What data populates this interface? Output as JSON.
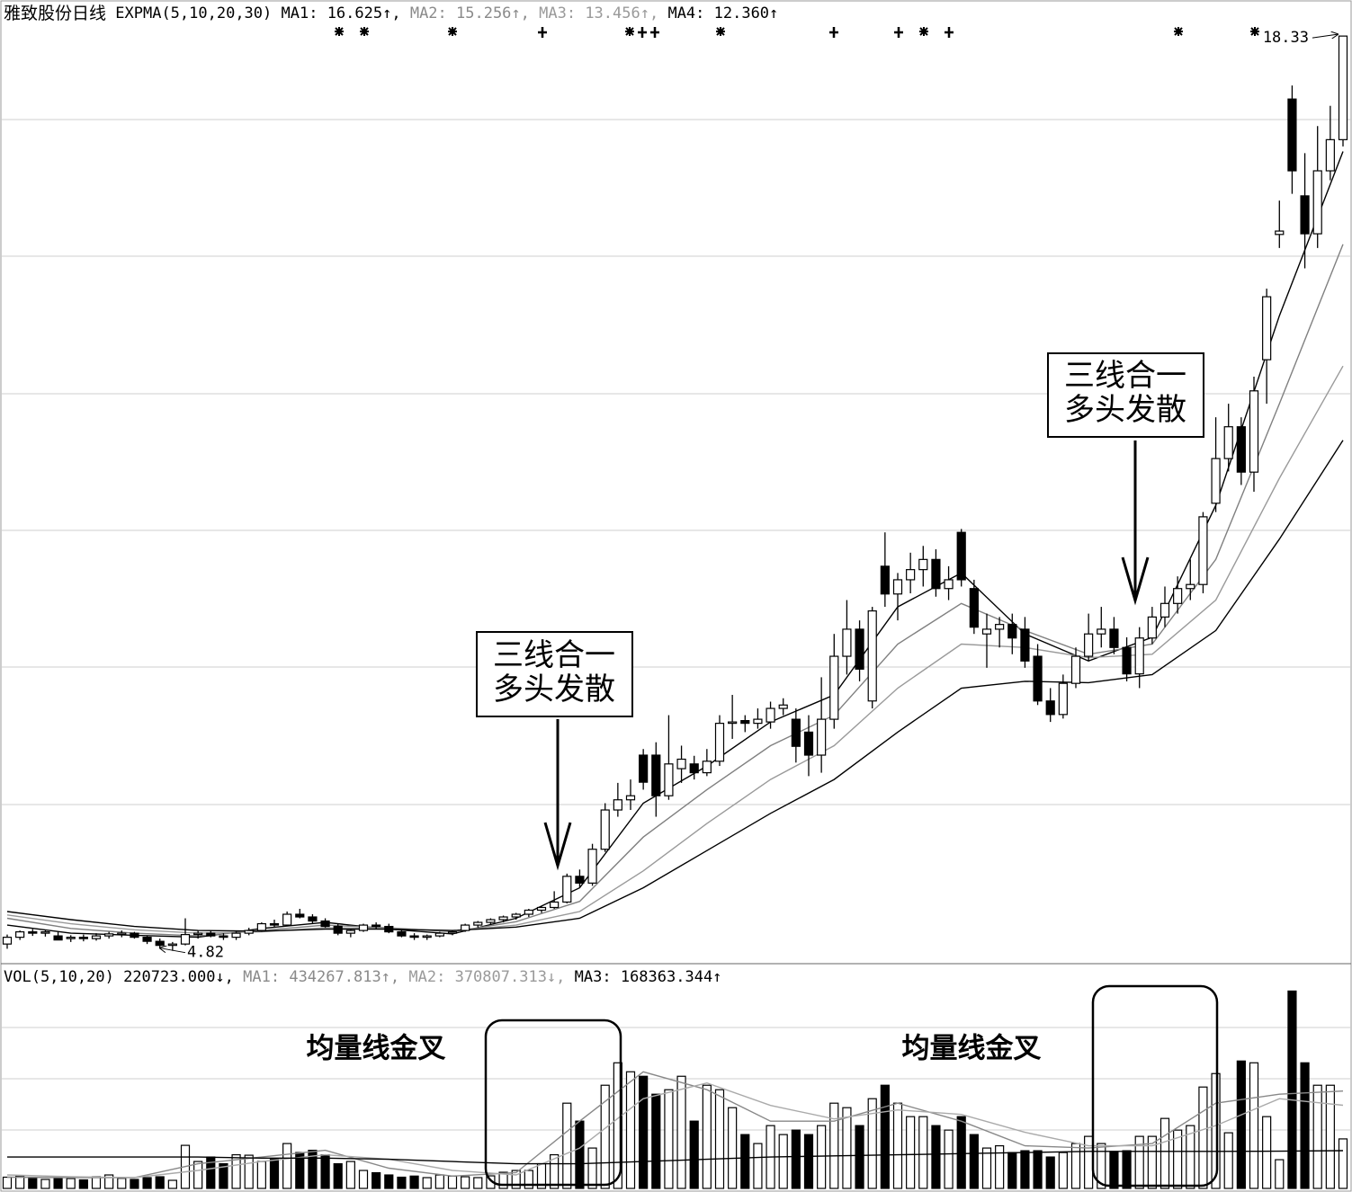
{
  "chart_data": [
    {
      "type": "candlestick",
      "title": "雅致股份日线",
      "indicator": "EXPMA(5,10,20,30)",
      "ylim": [
        4.63,
        18.73
      ],
      "candles": [
        [
          4.92,
          5.06,
          4.85,
          5.02
        ],
        [
          5.02,
          5.12,
          4.98,
          5.1
        ],
        [
          5.1,
          5.14,
          5.04,
          5.08
        ],
        [
          5.08,
          5.12,
          5.03,
          5.1
        ],
        [
          5.04,
          5.1,
          4.98,
          4.98
        ],
        [
          5.0,
          5.05,
          4.95,
          5.02
        ],
        [
          5.02,
          5.06,
          4.96,
          5.0
        ],
        [
          5.0,
          5.08,
          4.97,
          5.04
        ],
        [
          5.04,
          5.1,
          5.0,
          5.07
        ],
        [
          5.07,
          5.12,
          5.02,
          5.08
        ],
        [
          5.08,
          5.1,
          5.0,
          5.02
        ],
        [
          5.02,
          5.04,
          4.92,
          4.96
        ],
        [
          4.96,
          5.0,
          4.86,
          4.9
        ],
        [
          4.9,
          4.95,
          4.82,
          4.92
        ],
        [
          4.92,
          5.3,
          4.9,
          5.06
        ],
        [
          5.06,
          5.12,
          5.0,
          5.08
        ],
        [
          5.08,
          5.12,
          5.02,
          5.04
        ],
        [
          5.04,
          5.08,
          4.98,
          5.02
        ],
        [
          5.02,
          5.1,
          4.98,
          5.08
        ],
        [
          5.08,
          5.16,
          5.05,
          5.12
        ],
        [
          5.12,
          5.24,
          5.1,
          5.22
        ],
        [
          5.22,
          5.28,
          5.16,
          5.2
        ],
        [
          5.2,
          5.4,
          5.18,
          5.36
        ],
        [
          5.36,
          5.44,
          5.3,
          5.32
        ],
        [
          5.32,
          5.36,
          5.22,
          5.26
        ],
        [
          5.26,
          5.3,
          5.16,
          5.18
        ],
        [
          5.18,
          5.22,
          5.05,
          5.08
        ],
        [
          5.08,
          5.14,
          5.02,
          5.12
        ],
        [
          5.12,
          5.22,
          5.1,
          5.2
        ],
        [
          5.2,
          5.24,
          5.14,
          5.18
        ],
        [
          5.18,
          5.22,
          5.08,
          5.1
        ],
        [
          5.1,
          5.14,
          5.02,
          5.04
        ],
        [
          5.04,
          5.08,
          4.98,
          5.02
        ],
        [
          5.02,
          5.06,
          4.98,
          5.04
        ],
        [
          5.04,
          5.1,
          5.02,
          5.08
        ],
        [
          5.08,
          5.12,
          5.05,
          5.1
        ],
        [
          5.12,
          5.22,
          5.1,
          5.2
        ],
        [
          5.2,
          5.26,
          5.16,
          5.24
        ],
        [
          5.24,
          5.3,
          5.2,
          5.28
        ],
        [
          5.28,
          5.34,
          5.24,
          5.32
        ],
        [
          5.32,
          5.38,
          5.28,
          5.36
        ],
        [
          5.36,
          5.44,
          5.32,
          5.42
        ],
        [
          5.42,
          5.48,
          5.38,
          5.46
        ],
        [
          5.46,
          5.7,
          5.44,
          5.54
        ],
        [
          5.54,
          5.96,
          5.52,
          5.92
        ],
        [
          5.92,
          6.02,
          5.76,
          5.82
        ],
        [
          5.82,
          6.4,
          5.78,
          6.32
        ],
        [
          6.32,
          7.0,
          6.28,
          6.9
        ],
        [
          6.9,
          7.3,
          6.8,
          7.05
        ],
        [
          7.05,
          7.35,
          6.9,
          7.11
        ],
        [
          7.71,
          7.8,
          7.2,
          7.31
        ],
        [
          7.71,
          7.9,
          6.8,
          7.11
        ],
        [
          7.11,
          8.3,
          7.05,
          7.58
        ],
        [
          7.51,
          7.85,
          7.3,
          7.65
        ],
        [
          7.58,
          7.7,
          7.35,
          7.45
        ],
        [
          7.45,
          7.8,
          7.4,
          7.62
        ],
        [
          7.62,
          8.3,
          7.55,
          8.18
        ],
        [
          8.18,
          8.6,
          7.95,
          8.2
        ],
        [
          8.22,
          8.3,
          8.05,
          8.18
        ],
        [
          8.18,
          8.4,
          8.1,
          8.24
        ],
        [
          8.2,
          8.5,
          8.1,
          8.4
        ],
        [
          8.4,
          8.55,
          8.3,
          8.45
        ],
        [
          8.24,
          8.4,
          7.6,
          7.84
        ],
        [
          8.05,
          8.3,
          7.4,
          7.71
        ],
        [
          7.71,
          8.86,
          7.45,
          8.24
        ],
        [
          8.24,
          9.5,
          8.1,
          9.17
        ],
        [
          9.17,
          10.0,
          8.9,
          9.57
        ],
        [
          9.57,
          9.7,
          8.8,
          8.98
        ],
        [
          8.51,
          9.9,
          8.4,
          9.84
        ],
        [
          10.5,
          11.0,
          9.9,
          10.09
        ],
        [
          10.09,
          10.4,
          9.7,
          10.3
        ],
        [
          10.3,
          10.7,
          10.1,
          10.45
        ],
        [
          10.45,
          10.8,
          10.2,
          10.6
        ],
        [
          10.6,
          10.75,
          10.05,
          10.17
        ],
        [
          10.17,
          10.5,
          10.0,
          10.3
        ],
        [
          11.0,
          11.05,
          10.2,
          10.3
        ],
        [
          10.17,
          10.3,
          9.5,
          9.6
        ],
        [
          9.5,
          9.8,
          9.0,
          9.57
        ],
        [
          9.57,
          9.75,
          9.3,
          9.64
        ],
        [
          9.64,
          9.8,
          9.2,
          9.44
        ],
        [
          9.57,
          9.75,
          9.0,
          9.1
        ],
        [
          9.17,
          9.35,
          8.45,
          8.51
        ],
        [
          8.51,
          8.7,
          8.2,
          8.31
        ],
        [
          8.31,
          8.9,
          8.25,
          8.77
        ],
        [
          8.77,
          9.3,
          8.7,
          9.17
        ],
        [
          9.17,
          9.8,
          9.1,
          9.5
        ],
        [
          9.5,
          9.9,
          9.3,
          9.57
        ],
        [
          9.57,
          9.75,
          9.2,
          9.3
        ],
        [
          9.3,
          9.45,
          8.8,
          8.91
        ],
        [
          8.91,
          9.6,
          8.7,
          9.44
        ],
        [
          9.44,
          9.9,
          9.35,
          9.75
        ],
        [
          9.75,
          10.2,
          9.6,
          9.95
        ],
        [
          9.95,
          10.35,
          9.8,
          10.17
        ],
        [
          10.17,
          10.6,
          10.0,
          10.23
        ],
        [
          10.23,
          11.3,
          10.1,
          11.23
        ],
        [
          11.43,
          12.7,
          11.3,
          12.09
        ],
        [
          12.09,
          12.9,
          11.9,
          12.56
        ],
        [
          12.56,
          12.7,
          11.7,
          11.89
        ],
        [
          11.89,
          13.3,
          11.6,
          13.09
        ],
        [
          13.55,
          14.6,
          12.9,
          14.48
        ],
        [
          15.4,
          15.9,
          15.2,
          15.45
        ],
        [
          17.4,
          17.6,
          16.0,
          16.34
        ],
        [
          15.97,
          16.6,
          14.9,
          15.41
        ],
        [
          15.41,
          17.0,
          15.2,
          16.34
        ],
        [
          16.34,
          17.3,
          16.2,
          16.8
        ],
        [
          16.8,
          18.33,
          16.7,
          18.33
        ]
      ],
      "series": [
        {
          "label": "MA1: 16.625↑,",
          "color": "#000000",
          "x": [
            0,
            5,
            10,
            15,
            20,
            25,
            30,
            35,
            40,
            45,
            50,
            55,
            60,
            65,
            70,
            75,
            80,
            85,
            90,
            95,
            100,
            105
          ],
          "values": [
            5.2,
            5.08,
            5.05,
            5.02,
            5.15,
            5.24,
            5.14,
            5.07,
            5.3,
            5.75,
            7.0,
            7.55,
            8.2,
            8.6,
            9.9,
            10.4,
            9.5,
            9.1,
            9.45,
            11.4,
            14.2,
            16.625
          ]
        },
        {
          "label": "MA2: 15.256↑,",
          "color": "#808080",
          "x": [
            0,
            5,
            10,
            15,
            20,
            25,
            30,
            35,
            40,
            45,
            50,
            55,
            60,
            65,
            70,
            75,
            80,
            85,
            90,
            95,
            100,
            105
          ],
          "values": [
            5.3,
            5.15,
            5.08,
            5.04,
            5.12,
            5.2,
            5.16,
            5.1,
            5.25,
            5.55,
            6.5,
            7.2,
            7.85,
            8.3,
            9.35,
            9.95,
            9.55,
            9.2,
            9.35,
            10.6,
            12.9,
            15.256
          ]
        },
        {
          "label": "MA3: 13.456↑,",
          "color": "#9a9a9a",
          "x": [
            0,
            5,
            10,
            15,
            20,
            25,
            30,
            35,
            40,
            45,
            50,
            55,
            60,
            65,
            70,
            75,
            80,
            85,
            90,
            95,
            100,
            105
          ],
          "values": [
            5.35,
            5.22,
            5.13,
            5.08,
            5.1,
            5.16,
            5.15,
            5.11,
            5.2,
            5.4,
            6.0,
            6.7,
            7.35,
            7.85,
            8.7,
            9.35,
            9.3,
            9.15,
            9.2,
            10.0,
            11.8,
            13.456
          ]
        },
        {
          "label": "MA4: 12.360↑",
          "color": "#000000",
          "x": [
            0,
            5,
            10,
            15,
            20,
            25,
            30,
            35,
            40,
            45,
            50,
            55,
            60,
            65,
            70,
            75,
            80,
            85,
            90,
            95,
            100,
            105
          ],
          "values": [
            5.4,
            5.28,
            5.18,
            5.12,
            5.11,
            5.14,
            5.14,
            5.12,
            5.17,
            5.3,
            5.75,
            6.3,
            6.85,
            7.35,
            8.05,
            8.7,
            8.8,
            8.78,
            8.9,
            9.55,
            10.9,
            12.36
          ]
        }
      ],
      "max_label": 18.33,
      "min_label": 4.82,
      "annotations": [
        {
          "lines": [
            "三线合一",
            "多头发散"
          ]
        },
        {
          "lines": [
            "三线合一",
            "多头发散"
          ]
        }
      ]
    },
    {
      "type": "bar",
      "title": "VOL(5,10,20)",
      "value_label": "220723.000↓,",
      "ylim": [
        0,
        990000
      ],
      "values": [
        50000,
        55000,
        45000,
        40000,
        48000,
        44000,
        38000,
        52000,
        60000,
        45000,
        40000,
        48000,
        52000,
        36000,
        192000,
        120000,
        140000,
        110000,
        150000,
        148000,
        120000,
        130000,
        200000,
        160000,
        170000,
        150000,
        110000,
        120000,
        80000,
        70000,
        60000,
        50000,
        55000,
        48000,
        60000,
        55000,
        52000,
        48000,
        56000,
        72000,
        80000,
        80000,
        110000,
        150000,
        380000,
        300000,
        180000,
        460000,
        560000,
        520000,
        500000,
        420000,
        440000,
        500000,
        300000,
        460000,
        440000,
        360000,
        240000,
        200000,
        280000,
        240000,
        260000,
        240000,
        280000,
        380000,
        360000,
        280000,
        400000,
        460000,
        380000,
        320000,
        320000,
        280000,
        260000,
        320000,
        240000,
        180000,
        190000,
        160000,
        168000,
        168000,
        140000,
        160000,
        200000,
        232000,
        200000,
        160000,
        168000,
        232000,
        232000,
        312000,
        260000,
        280000,
        452000,
        512000,
        248000,
        568000,
        560000,
        320000,
        128000,
        880000,
        560000,
        460000,
        460000,
        220723
      ],
      "series": [
        {
          "label": "MA1: 434267.813↑,",
          "color": "#888888",
          "x": [
            0,
            5,
            10,
            15,
            20,
            25,
            30,
            35,
            40,
            45,
            50,
            55,
            60,
            65,
            70,
            75,
            80,
            85,
            90,
            95,
            100,
            105
          ],
          "values": [
            50000,
            48000,
            48000,
            110000,
            140000,
            170000,
            90000,
            55000,
            70000,
            300000,
            520000,
            440000,
            300000,
            300000,
            380000,
            300000,
            190000,
            180000,
            200000,
            380000,
            420000,
            434267.813
          ]
        },
        {
          "label": "MA2: 370807.313↓,",
          "color": "#aaaaaa",
          "x": [
            0,
            5,
            10,
            15,
            20,
            25,
            30,
            35,
            40,
            45,
            50,
            55,
            60,
            65,
            70,
            75,
            80,
            85,
            90,
            95,
            100,
            105
          ],
          "values": [
            60000,
            52000,
            48000,
            80000,
            120000,
            150000,
            130000,
            80000,
            60000,
            180000,
            400000,
            470000,
            370000,
            310000,
            350000,
            330000,
            250000,
            190000,
            190000,
            280000,
            400000,
            370807.313
          ]
        },
        {
          "label": "MA3: 168363.344↑",
          "color": "#000000",
          "x": [
            0,
            5,
            10,
            15,
            20,
            25,
            30,
            35,
            40,
            45,
            50,
            55,
            60,
            65,
            70,
            75,
            80,
            85,
            90,
            95,
            100,
            105
          ],
          "values": [
            140000,
            140000,
            140000,
            140000,
            135000,
            135000,
            130000,
            120000,
            110000,
            110000,
            120000,
            130000,
            140000,
            145000,
            150000,
            155000,
            160000,
            165000,
            165000,
            165000,
            166000,
            168363.344
          ]
        }
      ],
      "annotations": [
        {
          "text": "均量线金叉"
        },
        {
          "text": "均量线金叉"
        }
      ]
    }
  ]
}
